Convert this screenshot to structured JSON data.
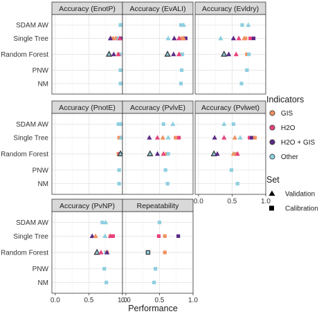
{
  "chart_data": {
    "type": "scatter",
    "xlabel": "Performance",
    "xlim": [
      -0.05,
      1.0
    ],
    "x_ticks": [
      "0.0",
      "0.5",
      "1.0"
    ],
    "x_tick_values": [
      0,
      0.5,
      1.0
    ],
    "grid": true,
    "facet_grid": {
      "columns": 3,
      "rows": 3
    },
    "categories": [
      "SDAM AW",
      "Single Tree",
      "Random Forest",
      "PNW",
      "NM"
    ],
    "colors": {
      "GIS": "#f0915f",
      "H2O": "#e8427c",
      "H2O + GIS": "#5b2a86",
      "Other": "#8ecfe0"
    },
    "legend": {
      "position": "right",
      "indicators_title": "Indicators",
      "indicators": [
        {
          "name": "GIS",
          "color": "#f0915f"
        },
        {
          "name": "H2O",
          "color": "#e8427c"
        },
        {
          "name": "H2O + GIS",
          "color": "#5b2a86"
        },
        {
          "name": "Other",
          "color": "#8ecfe0"
        }
      ],
      "set_title": "Set",
      "sets": [
        {
          "name": "Validation",
          "shape": "triangle"
        },
        {
          "name": "Calibration",
          "shape": "square"
        }
      ]
    },
    "panels": [
      {
        "title": "Accuracy (EnotP)",
        "col": 0,
        "row": 0,
        "points": [
          {
            "y": "SDAM AW",
            "x": 0.97,
            "ind": "Other",
            "set": "Calibration"
          },
          {
            "y": "SDAM AW",
            "x": 0.98,
            "ind": "Other",
            "set": "Validation"
          },
          {
            "y": "Single Tree",
            "x": 0.85,
            "ind": "GIS",
            "set": "Calibration"
          },
          {
            "y": "Single Tree",
            "x": 0.91,
            "ind": "Other",
            "set": "Calibration"
          },
          {
            "y": "Single Tree",
            "x": 0.95,
            "ind": "H2O",
            "set": "Calibration"
          },
          {
            "y": "Single Tree",
            "x": 0.98,
            "ind": "H2O + GIS",
            "set": "Calibration"
          },
          {
            "y": "Single Tree",
            "x": 0.82,
            "ind": "H2O + GIS",
            "set": "Validation"
          },
          {
            "y": "Single Tree",
            "x": 0.9,
            "ind": "GIS",
            "set": "Validation"
          },
          {
            "y": "Single Tree",
            "x": 0.94,
            "ind": "Other",
            "set": "Validation"
          },
          {
            "y": "Single Tree",
            "x": 0.96,
            "ind": "H2O",
            "set": "Validation"
          },
          {
            "y": "Random Forest",
            "x": 0.94,
            "ind": "GIS",
            "set": "Calibration"
          },
          {
            "y": "Random Forest",
            "x": 0.96,
            "ind": "Other",
            "set": "Calibration"
          },
          {
            "y": "Random Forest",
            "x": 0.8,
            "ind": "Other",
            "set": "Validation",
            "outline": true
          },
          {
            "y": "Random Forest",
            "x": 0.87,
            "ind": "H2O + GIS",
            "set": "Validation"
          },
          {
            "y": "Random Forest",
            "x": 0.94,
            "ind": "H2O",
            "set": "Validation"
          },
          {
            "y": "PNW",
            "x": 0.97,
            "ind": "Other",
            "set": "Calibration"
          },
          {
            "y": "NM",
            "x": 0.97,
            "ind": "Other",
            "set": "Calibration"
          }
        ]
      },
      {
        "title": "Accuracy (EvALI)",
        "col": 1,
        "row": 0,
        "points": [
          {
            "y": "SDAM AW",
            "x": 0.82,
            "ind": "Other",
            "set": "Calibration"
          },
          {
            "y": "SDAM AW",
            "x": 0.86,
            "ind": "Other",
            "set": "Validation"
          },
          {
            "y": "Single Tree",
            "x": 0.83,
            "ind": "GIS",
            "set": "Calibration"
          },
          {
            "y": "Single Tree",
            "x": 0.87,
            "ind": "H2O",
            "set": "Calibration"
          },
          {
            "y": "Single Tree",
            "x": 0.89,
            "ind": "H2O + GIS",
            "set": "Calibration"
          },
          {
            "y": "Single Tree",
            "x": 0.63,
            "ind": "Other",
            "set": "Validation"
          },
          {
            "y": "Single Tree",
            "x": 0.72,
            "ind": "H2O + GIS",
            "set": "Validation"
          },
          {
            "y": "Single Tree",
            "x": 0.79,
            "ind": "H2O",
            "set": "Validation"
          },
          {
            "y": "Single Tree",
            "x": 0.86,
            "ind": "GIS",
            "set": "Validation"
          },
          {
            "y": "Random Forest",
            "x": 0.82,
            "ind": "GIS",
            "set": "Calibration"
          },
          {
            "y": "Random Forest",
            "x": 0.84,
            "ind": "Other",
            "set": "Calibration"
          },
          {
            "y": "Random Forest",
            "x": 0.62,
            "ind": "Other",
            "set": "Validation",
            "outline": true
          },
          {
            "y": "Random Forest",
            "x": 0.71,
            "ind": "H2O + GIS",
            "set": "Validation"
          },
          {
            "y": "Random Forest",
            "x": 0.79,
            "ind": "H2O",
            "set": "Validation"
          },
          {
            "y": "PNW",
            "x": 0.83,
            "ind": "Other",
            "set": "Calibration"
          },
          {
            "y": "NM",
            "x": 0.82,
            "ind": "Other",
            "set": "Calibration"
          }
        ]
      },
      {
        "title": "Accuracy (Evldry)",
        "col": 2,
        "row": 0,
        "points": [
          {
            "y": "SDAM AW",
            "x": 0.65,
            "ind": "Other",
            "set": "Calibration"
          },
          {
            "y": "SDAM AW",
            "x": 0.74,
            "ind": "Other",
            "set": "Validation"
          },
          {
            "y": "Single Tree",
            "x": 0.7,
            "ind": "GIS",
            "set": "Calibration"
          },
          {
            "y": "Single Tree",
            "x": 0.77,
            "ind": "H2O",
            "set": "Calibration"
          },
          {
            "y": "Single Tree",
            "x": 0.82,
            "ind": "H2O + GIS",
            "set": "Calibration"
          },
          {
            "y": "Single Tree",
            "x": 0.33,
            "ind": "Other",
            "set": "Validation"
          },
          {
            "y": "Single Tree",
            "x": 0.52,
            "ind": "H2O + GIS",
            "set": "Validation"
          },
          {
            "y": "Single Tree",
            "x": 0.6,
            "ind": "H2O",
            "set": "Validation"
          },
          {
            "y": "Single Tree",
            "x": 0.68,
            "ind": "GIS",
            "set": "Validation"
          },
          {
            "y": "Random Forest",
            "x": 0.72,
            "ind": "GIS",
            "set": "Calibration"
          },
          {
            "y": "Random Forest",
            "x": 0.75,
            "ind": "Other",
            "set": "Calibration"
          },
          {
            "y": "Random Forest",
            "x": 0.38,
            "ind": "Other",
            "set": "Validation",
            "outline": true
          },
          {
            "y": "Random Forest",
            "x": 0.45,
            "ind": "H2O + GIS",
            "set": "Validation"
          },
          {
            "y": "Random Forest",
            "x": 0.56,
            "ind": "H2O",
            "set": "Validation"
          },
          {
            "y": "PNW",
            "x": 0.72,
            "ind": "Other",
            "set": "Calibration"
          },
          {
            "y": "NM",
            "x": 0.64,
            "ind": "Other",
            "set": "Calibration"
          }
        ]
      },
      {
        "title": "Accuracy (PnotE)",
        "col": 0,
        "row": 1,
        "points": [
          {
            "y": "SDAM AW",
            "x": 0.94,
            "ind": "Other",
            "set": "Calibration"
          },
          {
            "y": "SDAM AW",
            "x": 0.98,
            "ind": "Other",
            "set": "Validation"
          },
          {
            "y": "Single Tree",
            "x": 0.95,
            "ind": "GIS",
            "set": "Calibration"
          },
          {
            "y": "Single Tree",
            "x": 0.98,
            "ind": "Other",
            "set": "Validation"
          },
          {
            "y": "Random Forest",
            "x": 0.94,
            "ind": "GIS",
            "set": "Calibration"
          },
          {
            "y": "Random Forest",
            "x": 0.96,
            "ind": "H2O",
            "set": "Calibration"
          },
          {
            "y": "Random Forest",
            "x": 0.98,
            "ind": "Other",
            "set": "Calibration"
          },
          {
            "y": "Random Forest",
            "x": 0.97,
            "ind": "Other",
            "set": "Validation",
            "outline": true
          },
          {
            "y": "PNW",
            "x": 0.95,
            "ind": "Other",
            "set": "Calibration"
          },
          {
            "y": "NM",
            "x": 0.95,
            "ind": "Other",
            "set": "Calibration"
          }
        ]
      },
      {
        "title": "Accuracy (PvlvE)",
        "col": 1,
        "row": 1,
        "points": [
          {
            "y": "SDAM AW",
            "x": 0.56,
            "ind": "Other",
            "set": "Calibration"
          },
          {
            "y": "SDAM AW",
            "x": 0.7,
            "ind": "Other",
            "set": "Validation"
          },
          {
            "y": "Single Tree",
            "x": 0.74,
            "ind": "GIS",
            "set": "Calibration"
          },
          {
            "y": "Single Tree",
            "x": 0.79,
            "ind": "H2O",
            "set": "Calibration"
          },
          {
            "y": "Single Tree",
            "x": 0.35,
            "ind": "H2O + GIS",
            "set": "Validation"
          },
          {
            "y": "Single Tree",
            "x": 0.47,
            "ind": "H2O",
            "set": "Validation"
          },
          {
            "y": "Single Tree",
            "x": 0.55,
            "ind": "GIS",
            "set": "Validation"
          },
          {
            "y": "Single Tree",
            "x": 0.63,
            "ind": "Other",
            "set": "Validation"
          },
          {
            "y": "Random Forest",
            "x": 0.61,
            "ind": "GIS",
            "set": "Calibration"
          },
          {
            "y": "Random Forest",
            "x": 0.63,
            "ind": "Other",
            "set": "Calibration"
          },
          {
            "y": "Random Forest",
            "x": 0.36,
            "ind": "Other",
            "set": "Validation",
            "outline": true
          },
          {
            "y": "Random Forest",
            "x": 0.47,
            "ind": "H2O + GIS",
            "set": "Validation"
          },
          {
            "y": "Random Forest",
            "x": 0.56,
            "ind": "H2O",
            "set": "Validation"
          },
          {
            "y": "PNW",
            "x": 0.59,
            "ind": "Other",
            "set": "Calibration"
          },
          {
            "y": "NM",
            "x": 0.62,
            "ind": "Other",
            "set": "Calibration"
          }
        ]
      },
      {
        "title": "Accuracy (Pvlwet)",
        "col": 2,
        "row": 1,
        "points": [
          {
            "y": "SDAM AW",
            "x": 0.52,
            "ind": "Other",
            "set": "Calibration"
          },
          {
            "y": "SDAM AW",
            "x": 0.38,
            "ind": "Other",
            "set": "Validation"
          },
          {
            "y": "Single Tree",
            "x": 0.76,
            "ind": "H2O",
            "set": "Calibration"
          },
          {
            "y": "Single Tree",
            "x": 0.79,
            "ind": "H2O + GIS",
            "set": "Calibration"
          },
          {
            "y": "Single Tree",
            "x": 0.84,
            "ind": "GIS",
            "set": "Calibration"
          },
          {
            "y": "Single Tree",
            "x": 0.24,
            "ind": "H2O + GIS",
            "set": "Validation"
          },
          {
            "y": "Single Tree",
            "x": 0.38,
            "ind": "H2O",
            "set": "Validation"
          },
          {
            "y": "Single Tree",
            "x": 0.54,
            "ind": "GIS",
            "set": "Validation"
          },
          {
            "y": "Single Tree",
            "x": 0.62,
            "ind": "Other",
            "set": "Validation"
          },
          {
            "y": "Random Forest",
            "x": 0.55,
            "ind": "Other",
            "set": "Calibration"
          },
          {
            "y": "Random Forest",
            "x": 0.57,
            "ind": "GIS",
            "set": "Calibration"
          },
          {
            "y": "Random Forest",
            "x": 0.23,
            "ind": "Other",
            "set": "Validation",
            "outline": true
          },
          {
            "y": "Random Forest",
            "x": 0.28,
            "ind": "H2O + GIS",
            "set": "Validation"
          },
          {
            "y": "Random Forest",
            "x": 0.52,
            "ind": "GIS",
            "set": "Validation"
          },
          {
            "y": "Random Forest",
            "x": 0.58,
            "ind": "H2O",
            "set": "Validation"
          },
          {
            "y": "PNW",
            "x": 0.49,
            "ind": "Other",
            "set": "Calibration"
          },
          {
            "y": "NM",
            "x": 0.58,
            "ind": "Other",
            "set": "Calibration"
          }
        ]
      },
      {
        "title": "Accuracy (PvNP)",
        "col": 0,
        "row": 2,
        "points": [
          {
            "y": "SDAM AW",
            "x": 0.7,
            "ind": "Other",
            "set": "Calibration"
          },
          {
            "y": "SDAM AW",
            "x": 0.75,
            "ind": "Other",
            "set": "Validation"
          },
          {
            "y": "Single Tree",
            "x": 0.82,
            "ind": "GIS",
            "set": "Calibration"
          },
          {
            "y": "Single Tree",
            "x": 0.86,
            "ind": "H2O",
            "set": "Calibration"
          },
          {
            "y": "Single Tree",
            "x": 0.55,
            "ind": "H2O + GIS",
            "set": "Validation"
          },
          {
            "y": "Single Tree",
            "x": 0.6,
            "ind": "GIS",
            "set": "Validation"
          },
          {
            "y": "Single Tree",
            "x": 0.74,
            "ind": "Other",
            "set": "Validation"
          },
          {
            "y": "Single Tree",
            "x": 0.82,
            "ind": "H2O",
            "set": "Validation"
          },
          {
            "y": "Random Forest",
            "x": 0.75,
            "ind": "Other",
            "set": "Calibration"
          },
          {
            "y": "Random Forest",
            "x": 0.77,
            "ind": "GIS",
            "set": "Calibration"
          },
          {
            "y": "Random Forest",
            "x": 0.62,
            "ind": "Other",
            "set": "Validation",
            "outline": true
          },
          {
            "y": "Random Forest",
            "x": 0.68,
            "ind": "H2O",
            "set": "Validation"
          },
          {
            "y": "Random Forest",
            "x": 0.77,
            "ind": "H2O + GIS",
            "set": "Validation"
          },
          {
            "y": "PNW",
            "x": 0.73,
            "ind": "Other",
            "set": "Calibration"
          },
          {
            "y": "NM",
            "x": 0.76,
            "ind": "Other",
            "set": "Calibration"
          }
        ]
      },
      {
        "title": "Repeatability",
        "col": 1,
        "row": 2,
        "points": [
          {
            "y": "SDAM AW",
            "x": 0.5,
            "ind": "Other",
            "set": "Calibration"
          },
          {
            "y": "Single Tree",
            "x": 0.49,
            "ind": "H2O",
            "set": "Calibration"
          },
          {
            "y": "Single Tree",
            "x": 0.58,
            "ind": "GIS",
            "set": "Calibration"
          },
          {
            "y": "Single Tree",
            "x": 0.78,
            "ind": "H2O + GIS",
            "set": "Calibration"
          },
          {
            "y": "Random Forest",
            "x": 0.33,
            "ind": "Other",
            "set": "Calibration",
            "outline": true
          },
          {
            "y": "Random Forest",
            "x": 0.58,
            "ind": "GIS",
            "set": "Calibration"
          },
          {
            "y": "PNW",
            "x": 0.44,
            "ind": "Other",
            "set": "Calibration"
          },
          {
            "y": "NM",
            "x": 0.42,
            "ind": "Other",
            "set": "Calibration"
          }
        ]
      }
    ]
  }
}
